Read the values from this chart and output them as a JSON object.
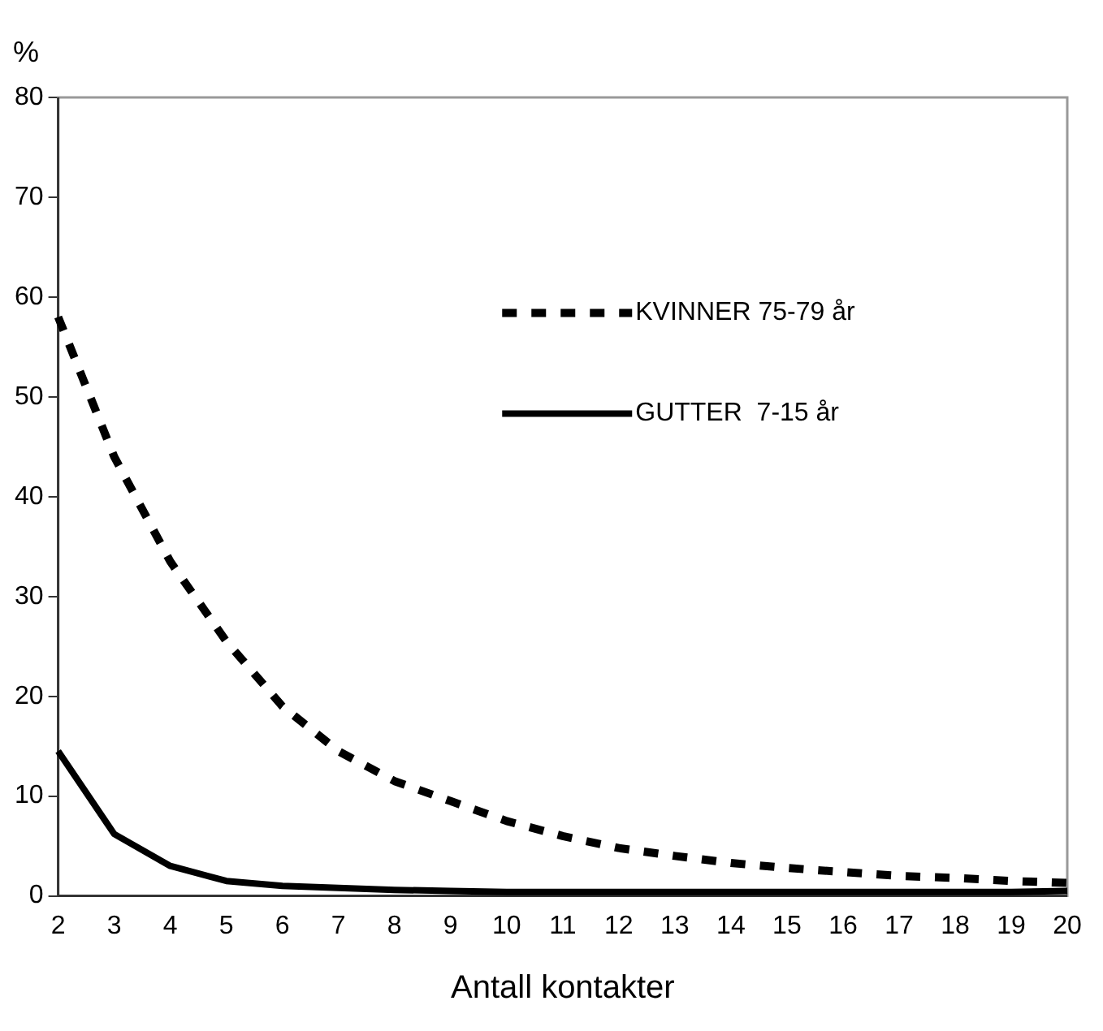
{
  "chart_data": {
    "type": "line",
    "xlabel": "Antall kontakter",
    "ylabel": "%",
    "categories": [
      "2",
      "3",
      "4",
      "5",
      "6",
      "7",
      "8",
      "9",
      "10",
      "11",
      "12",
      "13",
      "14",
      "15",
      "16",
      "17",
      "18",
      "19",
      "20"
    ],
    "series": [
      {
        "name": "KVINNER 75-79 år",
        "color": "#000000",
        "line_style": "dashed",
        "values": [
          58,
          44,
          33.5,
          25.5,
          19,
          14.5,
          11.5,
          9.5,
          7.5,
          6,
          4.8,
          4,
          3.3,
          2.8,
          2.4,
          2,
          1.8,
          1.5,
          1.3
        ]
      },
      {
        "name": "GUTTER  7-15 år",
        "color": "#000000",
        "line_style": "solid",
        "values": [
          14.5,
          6.2,
          3,
          1.5,
          1,
          0.8,
          0.6,
          0.5,
          0.4,
          0.4,
          0.4,
          0.4,
          0.4,
          0.4,
          0.4,
          0.4,
          0.4,
          0.4,
          0.5
        ]
      }
    ],
    "ylim": [
      0,
      80
    ],
    "yticks": [
      0,
      10,
      20,
      30,
      40,
      50,
      60,
      70,
      80
    ],
    "grid": false,
    "legend": "right",
    "marker": "none"
  }
}
